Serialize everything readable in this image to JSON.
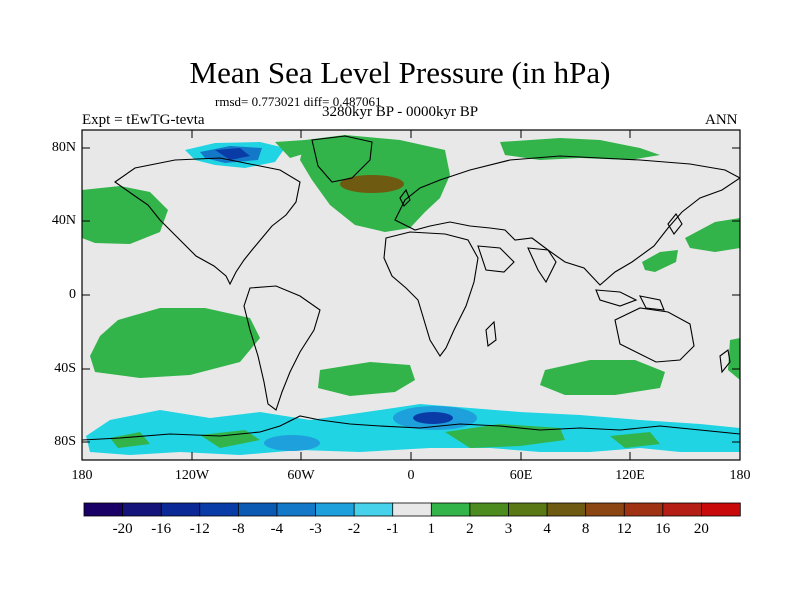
{
  "title": "Mean Sea Level Pressure (in hPa)",
  "stats_line": "rmsd= 0.773021 diff= 0.487061",
  "period": "3280kyr BP - 0000kyr BP",
  "experiment": "Expt = tEwTG-tevta",
  "season": "ANN",
  "y_ticks": [
    "80N",
    "40N",
    "0",
    "40S",
    "80S"
  ],
  "x_ticks": [
    "180",
    "120W",
    "60W",
    "0",
    "60E",
    "120E",
    "180"
  ],
  "colorbar": {
    "colors": [
      "#1a0066",
      "#14147a",
      "#0a2896",
      "#0a3ca8",
      "#0a5ab4",
      "#1478c8",
      "#1ea0dc",
      "#46d2ea",
      "#e8e8e8",
      "#32b44a",
      "#4c8c1e",
      "#5a7814",
      "#6e5a10",
      "#8c4614",
      "#a03214",
      "#b41e14",
      "#c80a0a"
    ],
    "labels": [
      "-20",
      "-16",
      "-12",
      "-8",
      "-4",
      "-3",
      "-2",
      "-1",
      "1",
      "2",
      "3",
      "4",
      "8",
      "12",
      "16",
      "20"
    ]
  },
  "colors": {
    "background": "#e8e8e8",
    "positive_small": "#32b44a",
    "positive_mid": "#6e5a10",
    "negative_small": "#20d4e4",
    "negative_mid": "#1478c8",
    "negative_large": "#0a3ca8"
  }
}
